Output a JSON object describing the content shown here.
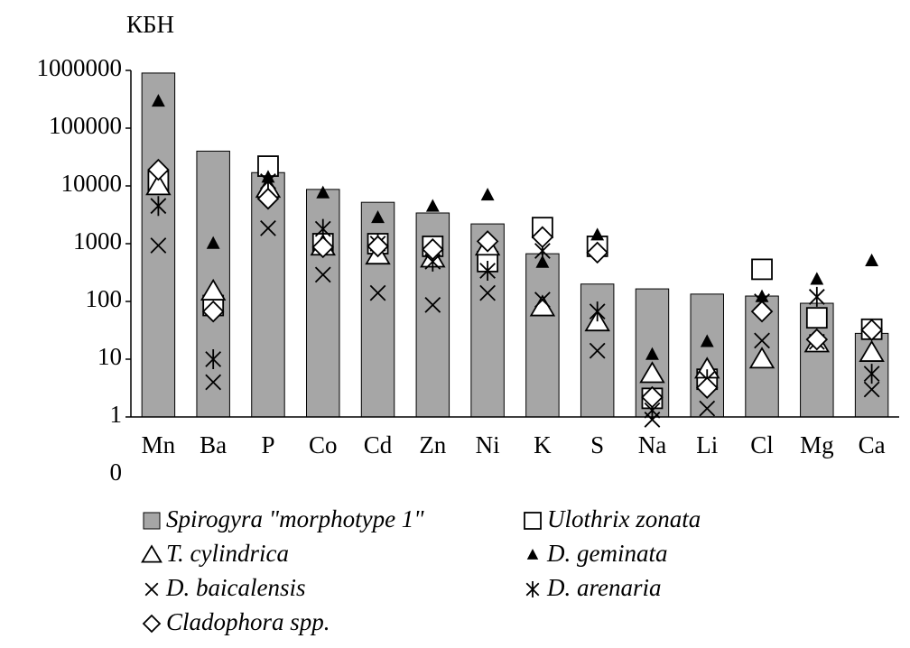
{
  "chart_data": {
    "type": "bar-marker",
    "y_axis_label": "КБН",
    "categories": [
      "Mn",
      "Ba",
      "P",
      "Co",
      "Cd",
      "Zn",
      "Ni",
      "K",
      "S",
      "Na",
      "Li",
      "Cl",
      "Mg",
      "Ca"
    ],
    "log_scale": true,
    "ylim": [
      0.1,
      1000000
    ],
    "yticks": [
      {
        "value": 0.1,
        "label": "0"
      },
      1,
      10,
      100,
      1000,
      10000,
      100000,
      1000000
    ],
    "x_axis_at": 1,
    "series": [
      {
        "name": "Spirogyra \"morphotype 1\"",
        "marker": "bar",
        "color": "#a6a6a6",
        "values": [
          900000,
          40000,
          17000,
          8700,
          5200,
          3400,
          2200,
          670,
          200,
          165,
          134,
          124,
          93,
          28
        ]
      },
      {
        "name": "Ulothrix zonata",
        "marker": "square",
        "color": "#000000",
        "values": [
          12000,
          85,
          22000,
          1000,
          1000,
          900,
          490,
          1900,
          900,
          2.1,
          4.5,
          360,
          52,
          33
        ]
      },
      {
        "name": "T. cylindrica",
        "marker": "triangle",
        "color": "#000000",
        "values": [
          10000,
          150,
          9000,
          900,
          630,
          560,
          900,
          80,
          44,
          5.6,
          6.7,
          10,
          19,
          13
        ]
      },
      {
        "name": "D. geminata",
        "marker": "filled-triangle",
        "color": "#000000",
        "values": [
          290000,
          1000,
          14000,
          7500,
          2800,
          4400,
          6900,
          470,
          1400,
          12,
          20,
          120,
          240,
          500
        ]
      },
      {
        "name": "D. baicalensis",
        "marker": "x",
        "color": "#000000",
        "values": [
          930,
          4,
          1850,
          290,
          140,
          87,
          140,
          107,
          14,
          0.9,
          1.4,
          21,
          20,
          3
        ]
      },
      {
        "name": "D. arenaria",
        "marker": "asterisk",
        "color": "#000000",
        "values": [
          4500,
          10,
          12000,
          1800,
          1000,
          490,
          340,
          750,
          67,
          1.3,
          4.5,
          100,
          120,
          5.6
        ]
      },
      {
        "name": "Cladophora spp.",
        "marker": "diamond",
        "color": "#000000",
        "values": [
          19000,
          67,
          6000,
          870,
          900,
          800,
          1100,
          1300,
          700,
          2.2,
          3.2,
          67,
          22,
          32
        ]
      }
    ]
  }
}
